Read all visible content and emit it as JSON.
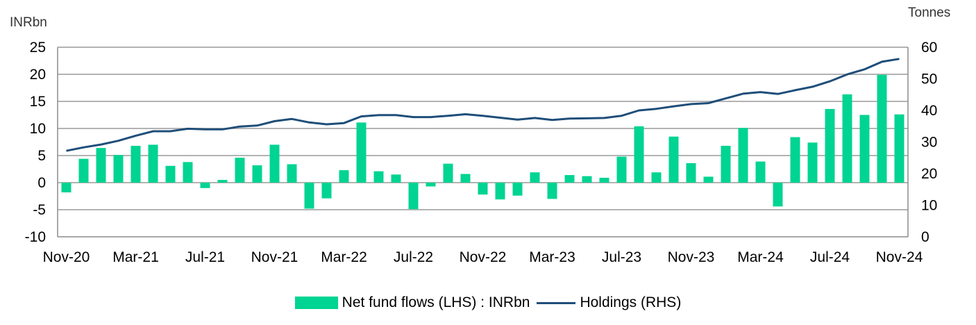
{
  "colors": {
    "bar": "#00d492",
    "line": "#1f4e79",
    "grid": "#b3b3b3",
    "axis": "#8c8c8c"
  },
  "chart_data": {
    "type": "bar",
    "left_axis_unit": "INRbn",
    "right_axis_unit": "Tonnes",
    "ylim_left": [
      -10,
      25
    ],
    "ylim_right": [
      0,
      60
    ],
    "left_ticks": [
      "-10",
      "-5",
      "0",
      "5",
      "10",
      "15",
      "20",
      "25"
    ],
    "right_ticks": [
      "0",
      "10",
      "20",
      "30",
      "40",
      "50",
      "60"
    ],
    "x_tick_labels": [
      "Nov-20",
      "Mar-21",
      "Jul-21",
      "Nov-21",
      "Mar-22",
      "Jul-22",
      "Nov-22",
      "Mar-23",
      "Jul-23",
      "Nov-23",
      "Mar-24",
      "Jul-24",
      "Nov-24"
    ],
    "categories": [
      "Nov-20",
      "Dec-20",
      "Jan-21",
      "Feb-21",
      "Mar-21",
      "Apr-21",
      "May-21",
      "Jun-21",
      "Jul-21",
      "Aug-21",
      "Sep-21",
      "Oct-21",
      "Nov-21",
      "Dec-21",
      "Jan-22",
      "Feb-22",
      "Mar-22",
      "Apr-22",
      "May-22",
      "Jun-22",
      "Jul-22",
      "Aug-22",
      "Sep-22",
      "Oct-22",
      "Nov-22",
      "Dec-22",
      "Jan-23",
      "Feb-23",
      "Mar-23",
      "Apr-23",
      "May-23",
      "Jun-23",
      "Jul-23",
      "Aug-23",
      "Sep-23",
      "Oct-23",
      "Nov-23",
      "Dec-23",
      "Jan-24",
      "Feb-24",
      "Mar-24",
      "Apr-24",
      "May-24",
      "Jun-24",
      "Jul-24",
      "Aug-24",
      "Sep-24",
      "Oct-24",
      "Nov-24"
    ],
    "grid": true,
    "legend_position": "bottom",
    "series": [
      {
        "name": "Net fund flows (LHS) : INRbn",
        "type": "bar",
        "axis": "left",
        "values": [
          -1.8,
          4.4,
          6.4,
          5.1,
          6.8,
          7.0,
          3.1,
          3.8,
          -1.0,
          0.5,
          4.6,
          3.2,
          7.0,
          3.4,
          -4.8,
          -2.9,
          2.3,
          11.1,
          2.1,
          1.5,
          -4.9,
          -0.7,
          3.5,
          1.6,
          -2.2,
          -3.1,
          -2.4,
          1.9,
          -3.0,
          1.4,
          1.2,
          0.9,
          4.8,
          10.4,
          1.9,
          8.5,
          3.6,
          1.1,
          6.8,
          10.1,
          3.9,
          -4.4,
          8.4,
          7.4,
          13.6,
          16.3,
          12.5,
          19.9,
          12.6
        ]
      },
      {
        "name": "Holdings (RHS)",
        "type": "line",
        "axis": "right",
        "values": [
          27.2,
          28.3,
          29.2,
          30.4,
          32.0,
          33.4,
          33.4,
          34.2,
          34.0,
          34.0,
          34.9,
          35.2,
          36.6,
          37.3,
          36.2,
          35.6,
          36.0,
          38.1,
          38.5,
          38.5,
          37.9,
          37.9,
          38.3,
          38.8,
          38.3,
          37.7,
          37.1,
          37.6,
          37.0,
          37.4,
          37.5,
          37.6,
          38.3,
          40.0,
          40.5,
          41.3,
          42.0,
          42.3,
          43.8,
          45.3,
          45.8,
          45.2,
          46.4,
          47.5,
          49.2,
          51.4,
          53.0,
          55.4,
          56.3
        ]
      }
    ]
  }
}
